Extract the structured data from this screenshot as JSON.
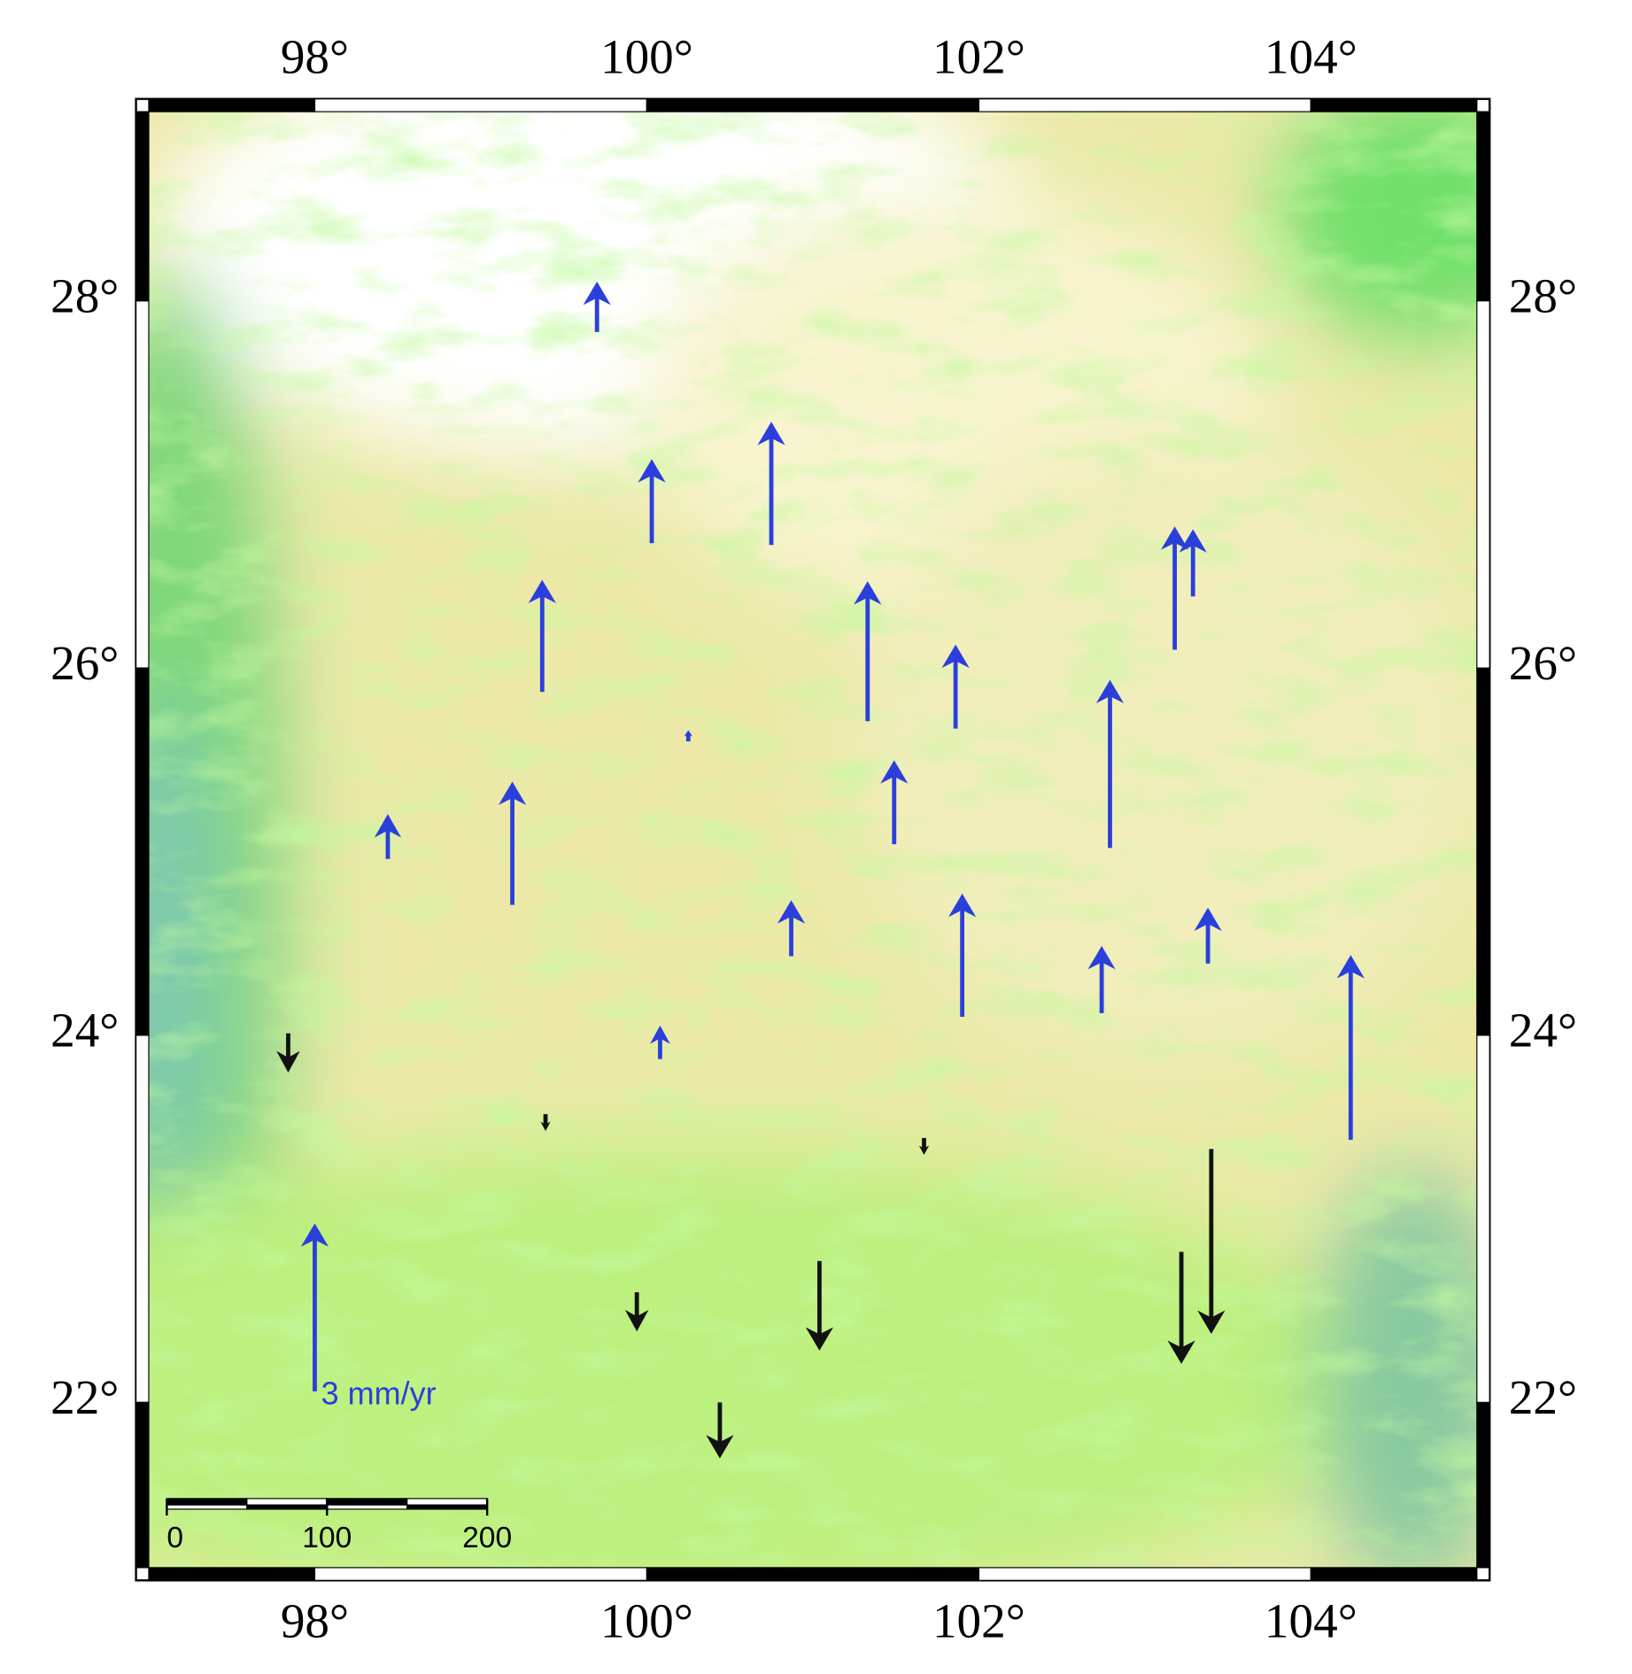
{
  "map": {
    "lonlim": [
      97,
      105
    ],
    "latlim": [
      21.1,
      29.03
    ],
    "xticks": [
      {
        "value": 98,
        "label": "98°"
      },
      {
        "value": 100,
        "label": "100°"
      },
      {
        "value": 102,
        "label": "102°"
      },
      {
        "value": 104,
        "label": "104°"
      }
    ],
    "yticks": [
      {
        "value": 22,
        "label": "22°"
      },
      {
        "value": 24,
        "label": "24°"
      },
      {
        "value": 26,
        "label": "26°"
      },
      {
        "value": 28,
        "label": "28°"
      }
    ],
    "up_color": "#2a3fdb",
    "down_color": "#111111",
    "vectors": [
      {
        "lon": 99.7,
        "lat": 27.83,
        "value": 0.9
      },
      {
        "lon": 100.03,
        "lat": 26.68,
        "value": 1.5
      },
      {
        "lon": 100.75,
        "lat": 26.67,
        "value": 2.2
      },
      {
        "lon": 99.37,
        "lat": 25.87,
        "value": 2.0
      },
      {
        "lon": 101.33,
        "lat": 25.71,
        "value": 2.5
      },
      {
        "lon": 101.86,
        "lat": 25.67,
        "value": 1.5
      },
      {
        "lon": 103.18,
        "lat": 26.1,
        "value": 2.2
      },
      {
        "lon": 103.29,
        "lat": 26.39,
        "value": 1.2
      },
      {
        "lon": 102.79,
        "lat": 25.02,
        "value": 3.0
      },
      {
        "lon": 100.25,
        "lat": 25.6,
        "value": 0.2
      },
      {
        "lon": 101.49,
        "lat": 25.04,
        "value": 1.5
      },
      {
        "lon": 98.44,
        "lat": 24.96,
        "value": 0.8
      },
      {
        "lon": 99.19,
        "lat": 24.71,
        "value": 2.2
      },
      {
        "lon": 100.87,
        "lat": 24.43,
        "value": 1.0
      },
      {
        "lon": 101.9,
        "lat": 24.1,
        "value": 2.2
      },
      {
        "lon": 102.74,
        "lat": 24.12,
        "value": 1.2
      },
      {
        "lon": 103.38,
        "lat": 24.39,
        "value": 1.0
      },
      {
        "lon": 104.24,
        "lat": 23.43,
        "value": 3.3
      },
      {
        "lon": 100.08,
        "lat": 23.87,
        "value": 0.6
      },
      {
        "lon": 97.84,
        "lat": 24.01,
        "value": -0.7
      },
      {
        "lon": 99.39,
        "lat": 23.57,
        "value": -0.3
      },
      {
        "lon": 101.67,
        "lat": 23.44,
        "value": -0.3
      },
      {
        "lon": 99.94,
        "lat": 22.6,
        "value": -0.7
      },
      {
        "lon": 101.04,
        "lat": 22.77,
        "value": -1.6
      },
      {
        "lon": 103.4,
        "lat": 23.38,
        "value": -3.3
      },
      {
        "lon": 103.22,
        "lat": 22.82,
        "value": -2.0
      },
      {
        "lon": 100.44,
        "lat": 22.0,
        "value": -1.0
      }
    ],
    "legend": {
      "lon": 98.0,
      "lat": 22.06,
      "value": 3,
      "label": "3 mm/yr"
    },
    "scale_bar": {
      "ticks": [
        0,
        100,
        200
      ]
    }
  }
}
